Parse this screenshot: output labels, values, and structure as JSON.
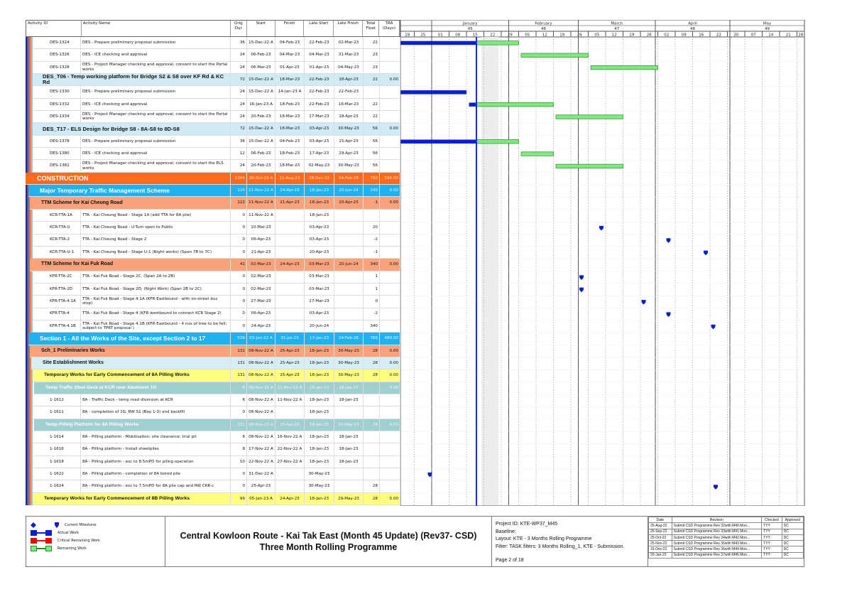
{
  "columns": {
    "id": "Activity ID",
    "name": "Activity Name",
    "dur": "Orig Dur",
    "start": "Start",
    "finish": "Finish",
    "ls": "Late Start",
    "lf": "Late Finish",
    "tf": "Total Float",
    "tra": "TRA (Days)"
  },
  "timescale": {
    "start": "2022-12-18",
    "end": "2023-05-31",
    "data_date": "2023-01-19",
    "shaded": [
      "2023-01-21",
      "2023-01-28"
    ],
    "months": [
      {
        "name": "January",
        "num": "45",
        "start": "2023-01-01"
      },
      {
        "name": "February",
        "num": "46",
        "start": "2023-02-01"
      },
      {
        "name": "March",
        "num": "47",
        "start": "2023-03-01"
      },
      {
        "name": "April",
        "num": "48",
        "start": "2023-04-01"
      },
      {
        "name": "May",
        "num": "49",
        "start": "2023-05-01"
      }
    ],
    "weeks": [
      "18",
      "25",
      "01",
      "08",
      "15",
      "22",
      "29",
      "05",
      "12",
      "19",
      "26",
      "05",
      "12",
      "19",
      "26",
      "02",
      "09",
      "16",
      "23",
      "30",
      "07",
      "14",
      "21",
      "28"
    ],
    "week_starts": [
      "2022-12-18",
      "2022-12-25",
      "2023-01-01",
      "2023-01-08",
      "2023-01-15",
      "2023-01-22",
      "2023-01-29",
      "2023-02-05",
      "2023-02-12",
      "2023-02-19",
      "2023-02-26",
      "2023-03-05",
      "2023-03-12",
      "2023-03-19",
      "2023-03-26",
      "2023-04-02",
      "2023-04-09",
      "2023-04-16",
      "2023-04-23",
      "2023-04-30",
      "2023-05-07",
      "2023-05-14",
      "2023-05-21",
      "2023-05-28"
    ]
  },
  "colors": {
    "actual": "#0a1fd0",
    "remaining": "#80e880",
    "milestone": "#1020c0",
    "critical": "#e01010",
    "data_date": "#1a2ee0"
  },
  "rows": [
    {
      "type": "act",
      "id": "DES-1324",
      "name": "DES  - Prepare preliminary proposal submission",
      "dur": "36",
      "start": "15-Dec-22 A",
      "finish": "04-Feb-23",
      "ls": "22-Feb-23",
      "lf": "02-Mar-23",
      "tf": "22",
      "tra": "",
      "actual": [
        "2022-12-15",
        "2023-01-19"
      ],
      "remaining": [
        "2023-01-19",
        "2023-02-05"
      ]
    },
    {
      "type": "act",
      "id": "DES-1326",
      "name": "DES - ICE checking and approval",
      "dur": "24",
      "start": "06-Feb-23",
      "finish": "04-Mar-23",
      "ls": "04-Mar-23",
      "lf": "31-Mar-23",
      "tf": "23",
      "tra": "",
      "remaining": [
        "2023-02-06",
        "2023-03-05"
      ]
    },
    {
      "type": "act",
      "id": "DES-1328",
      "name": "DES - Project Manager checking and approval; consent to start the Portal works",
      "dur": "24",
      "start": "06-Mar-23",
      "finish": "01-Apr-23",
      "ls": "01-Apr-23",
      "lf": "04-May-23",
      "tf": "23",
      "tra": "",
      "remaining": [
        "2023-03-06",
        "2023-04-02"
      ]
    },
    {
      "type": "t-wbs",
      "id": "",
      "name": "DES_T06 - Temp working platform for Bridge S2 & S8 over KF Rd & KC Rd",
      "dur": "72",
      "start": "15-Dec-22 A",
      "finish": "18-Mar-23",
      "ls": "22-Feb-23",
      "lf": "18-Apr-23",
      "tf": "22",
      "tra": "0.00"
    },
    {
      "type": "act",
      "id": "DES-1330",
      "name": "DES  - Prepare preliminary proposal submission",
      "dur": "24",
      "start": "15-Dec-22 A",
      "finish": "14-Jan-23 A",
      "ls": "22-Feb-23",
      "lf": "22-Feb-23",
      "tf": "",
      "tra": "",
      "actual": [
        "2022-12-15",
        "2023-01-15"
      ]
    },
    {
      "type": "act",
      "id": "DES-1332",
      "name": "DES - ICE checking and approval",
      "dur": "24",
      "start": "16-Jan-23 A",
      "finish": "18-Feb-23",
      "ls": "22-Feb-23",
      "lf": "16-Mar-23",
      "tf": "22",
      "tra": "",
      "actual": [
        "2023-01-16",
        "2023-01-19"
      ],
      "remaining": [
        "2023-01-19",
        "2023-02-19"
      ]
    },
    {
      "type": "act",
      "id": "DES-1334",
      "name": "DES - Project Manager checking and approval; consent to start the Portal works",
      "dur": "24",
      "start": "20-Feb-23",
      "finish": "18-Mar-23",
      "ls": "17-Mar-23",
      "lf": "18-Apr-23",
      "tf": "22",
      "tra": "",
      "remaining": [
        "2023-02-20",
        "2023-03-19"
      ]
    },
    {
      "type": "t-wbs",
      "id": "",
      "name": "DES_T17 - ELS Design for Bridge S8 - 8A-S8 to 8D-S8",
      "dur": "72",
      "start": "15-Dec-22 A",
      "finish": "18-Mar-23",
      "ls": "03-Apr-23",
      "lf": "30-May-23",
      "tf": "56",
      "tra": "0.00"
    },
    {
      "type": "act",
      "id": "DES-1378",
      "name": "DES - Prepare preliminary proposal submission",
      "dur": "36",
      "start": "15-Dec-22 A",
      "finish": "04-Feb-23",
      "ls": "03-Apr-23",
      "lf": "15-Apr-23",
      "tf": "56",
      "tra": "",
      "actual": [
        "2022-12-15",
        "2023-01-19"
      ],
      "remaining": [
        "2023-01-19",
        "2023-02-05"
      ]
    },
    {
      "type": "act",
      "id": "DES-1380",
      "name": "DES - ICE checking and approval",
      "dur": "12",
      "start": "06-Feb-23",
      "finish": "18-Feb-23",
      "ls": "17-Apr-23",
      "lf": "29-Apr-23",
      "tf": "56",
      "tra": "",
      "remaining": [
        "2023-02-06",
        "2023-02-19"
      ]
    },
    {
      "type": "act",
      "id": "DES-1382",
      "name": "DES - Project Manager checking and approval; consent to start the ELS works",
      "dur": "24",
      "start": "20-Feb-23",
      "finish": "18-Mar-23",
      "ls": "02-May-23",
      "lf": "30-May-23",
      "tf": "56",
      "tra": "",
      "remaining": [
        "2023-02-20",
        "2023-03-19"
      ]
    },
    {
      "type": "t-l1",
      "id": "",
      "name": "CONSTRUCTION",
      "dur": "1264",
      "start": "30-Oct-19 A",
      "finish": "11-Aug-23",
      "ls": "28-Dec-22",
      "lf": "24-Feb-26",
      "tf": "750",
      "tra": "596.00"
    },
    {
      "type": "t-l2",
      "id": "",
      "name": "Major Temporary Traffic Management Scheme",
      "dur": "124",
      "start": "11-Nov-22 A",
      "finish": "24-Apr-23",
      "ls": "18-Jan-23",
      "lf": "20-Jun-24",
      "tf": "340",
      "tra": "0.00"
    },
    {
      "type": "t-l3",
      "id": "",
      "name": "TTM Scheme for Kai Cheung Road",
      "dur": "122",
      "start": "11-Nov-22 A",
      "finish": "21-Apr-23",
      "ls": "18-Jan-23",
      "lf": "20-Apr-23",
      "tf": "-1",
      "tra": "0.00"
    },
    {
      "type": "act",
      "id": "KCR-TTA-1A",
      "name": "TTA - Kai Cheung Road - Stage 1A (add TTA for 8A pile)",
      "dur": "0",
      "start": "11-Nov-22 A",
      "finish": "",
      "ls": "18-Jan-23",
      "lf": "",
      "tf": "",
      "tra": ""
    },
    {
      "type": "act",
      "id": "KCR-TTA-U",
      "name": "TTA - Kai Cheung Road - U-Turn open to Public",
      "dur": "0",
      "start": "10-Mar-23",
      "finish": "",
      "ls": "03-Apr-23",
      "lf": "",
      "tf": "20",
      "tra": "",
      "milestone": "2023-03-10"
    },
    {
      "type": "act",
      "id": "KCR-TTA-2",
      "name": "TTA - Kai Cheung Road - Stage 2",
      "dur": "0",
      "start": "06-Apr-23",
      "finish": "",
      "ls": "03-Apr-23",
      "lf": "",
      "tf": "-2",
      "tra": "",
      "milestone": "2023-04-06"
    },
    {
      "type": "act",
      "id": "KCR-TTA-U-1",
      "name": "TTA - Kai Cheung Road - Stage U-1 (Night works) (Span 7B to 7C)",
      "dur": "0",
      "start": "21-Apr-23",
      "finish": "",
      "ls": "20-Apr-23",
      "lf": "",
      "tf": "-1",
      "tra": "",
      "milestone": "2023-04-21"
    },
    {
      "type": "t-l3",
      "id": "",
      "name": "TTM Scheme for Kai Fuk Road",
      "dur": "41",
      "start": "02-Mar-23",
      "finish": "24-Apr-23",
      "ls": "03-Mar-23",
      "lf": "20-Jun-24",
      "tf": "340",
      "tra": "0.00"
    },
    {
      "type": "act",
      "id": "KFR-TTA-2C",
      "name": "TTA - Kai Fuk Road - Stage 2C,  (Span 2A to 2B)",
      "dur": "0",
      "start": "02-Mar-23",
      "finish": "",
      "ls": "03-Mar-23",
      "lf": "",
      "tf": "1",
      "tra": "",
      "milestone": "2023-03-02"
    },
    {
      "type": "act",
      "id": "KFR-TTA-2D",
      "name": "TTA - Kai Fuk Road - Stage 2D, (Night Work) (Span 2B to 2C)",
      "dur": "0",
      "start": "02-Mar-23",
      "finish": "",
      "ls": "03-Mar-23",
      "lf": "",
      "tf": "1",
      "tra": "",
      "milestone": "2023-03-02"
    },
    {
      "type": "act",
      "id": "KFR-TTA-4.1A",
      "name": "TTA - Kai Fuk Road - Stage 4.1A (KFR Eastbound - with on-street bus stop)",
      "dur": "0",
      "start": "27-Mar-23",
      "finish": "",
      "ls": "27-Mar-23",
      "lf": "",
      "tf": "0",
      "tra": "",
      "milestone": "2023-03-27"
    },
    {
      "type": "act",
      "id": "KFR-TTA-4",
      "name": "TTA - Kai Fuk Road - Stage 4 (KFR westbound to connect KCR Stage 2)",
      "dur": "0",
      "start": "06-Apr-23",
      "finish": "",
      "ls": "03-Apr-23",
      "lf": "",
      "tf": "-2",
      "tra": "",
      "milestone": "2023-04-06"
    },
    {
      "type": "act",
      "id": "KFR-TTA-4.1B",
      "name": "TTA - Kai Fuk Road - Stage 4.1B (KFR Eastbound - 4 nos of tree to be fell; subject to TPRT proposal )",
      "dur": "0",
      "start": "24-Apr-23",
      "finish": "",
      "ls": "20-Jun-24",
      "lf": "",
      "tf": "340",
      "tra": "",
      "milestone": "2023-04-24"
    },
    {
      "type": "t-l2",
      "id": "",
      "name": "Section 1 - All the Works of the Site, except Section 2 to 17",
      "dur": "539",
      "start": "03-Jan-22 A",
      "finish": "31-Jul-23",
      "ls": "13-Jan-23",
      "lf": "24-Feb-26",
      "tf": "760",
      "tra": "489.00"
    },
    {
      "type": "t-l3",
      "id": "",
      "name": "Sch_1 Preliminaries Works",
      "dur": "131",
      "start": "08-Nov-22 A",
      "finish": "25-Apr-23",
      "ls": "18-Jan-23",
      "lf": "30-May-23",
      "tf": "28",
      "tra": "0.00"
    },
    {
      "type": "t-site",
      "id": "",
      "name": "Site Establishment Works",
      "dur": "131",
      "start": "08-Nov-22 A",
      "finish": "25-Apr-23",
      "ls": "18-Jan-23",
      "lf": "30-May-23",
      "tf": "28",
      "tra": "0.00"
    },
    {
      "type": "t-yel",
      "id": "",
      "name": "Temporary Works for Early Commencement of 8A Pilling Works",
      "dur": "131",
      "start": "08-Nov-22 A",
      "finish": "25-Apr-23",
      "ls": "18-Jan-23",
      "lf": "30-May-23",
      "tf": "28",
      "tra": "0.00"
    },
    {
      "type": "t-teal",
      "id": "",
      "name": "Temp Traffic Steel Deck at KCR near Abutment 1G",
      "dur": "6",
      "start": "08-Nov-22 A",
      "finish": "11-Nov-22 A",
      "ls": "18-Jan-23",
      "lf": "18-Jan-23",
      "tf": "",
      "tra": "0.00"
    },
    {
      "type": "act",
      "id": "1-1612",
      "name": "8A - Traffic Deck - temp road diversion at KCR",
      "dur": "6",
      "start": "08-Nov-22 A",
      "finish": "11-Nov-22 A",
      "ls": "18-Jan-23",
      "lf": "18-Jan-23",
      "tf": "",
      "tra": ""
    },
    {
      "type": "act",
      "id": "1-1611",
      "name": "8A - completion of 1G,  RW S1 (Bay 1-3) and backfill",
      "dur": "0",
      "start": "08-Nov-22 A",
      "finish": "",
      "ls": "18-Jan-23",
      "lf": "",
      "tf": "",
      "tra": ""
    },
    {
      "type": "t-teal",
      "id": "",
      "name": "Temp Pilling Platform for 8A Pilling Works",
      "dur": "131",
      "start": "08-Nov-22 A",
      "finish": "25-Apr-23",
      "ls": "18-Jan-23",
      "lf": "30-May-23",
      "tf": "28",
      "tra": "0.00"
    },
    {
      "type": "act",
      "id": "1-1614",
      "name": "8A - Pilling platform -  Mobilisation; site clearance; trial pit",
      "dur": "6",
      "start": "08-Nov-22 A",
      "finish": "16-Nov-22 A",
      "ls": "18-Jan-23",
      "lf": "18-Jan-23",
      "tf": "",
      "tra": ""
    },
    {
      "type": "act",
      "id": "1-1616",
      "name": "8A - Pilling platform -  Install sheetpiles",
      "dur": "8",
      "start": "17-Nov-22 A",
      "finish": "22-Nov-22 A",
      "ls": "18-Jan-23",
      "lf": "18-Jan-23",
      "tf": "",
      "tra": ""
    },
    {
      "type": "act",
      "id": "1-1618",
      "name": "8A - Pilling platform - exc to 8.5mPD for piling operation",
      "dur": "10",
      "start": "22-Nov-22 A",
      "finish": "27-Nov-22 A",
      "ls": "18-Jan-23",
      "lf": "18-Jan-23",
      "tf": "",
      "tra": ""
    },
    {
      "type": "act",
      "id": "1-1622",
      "name": "8A - Pilling platform - completion of 8A bored pile",
      "dur": "0",
      "start": "31-Dec-22 A",
      "finish": "",
      "ls": "30-May-23",
      "lf": "",
      "tf": "",
      "tra": "",
      "milestone": "2022-12-31"
    },
    {
      "type": "act",
      "id": "1-1624",
      "name": "8A - Pilling platform - exc to 7.5mPD for 8A pile cap and RW CKR-c",
      "dur": "0",
      "start": "25-Apr-23",
      "finish": "",
      "ls": "30-May-23",
      "lf": "",
      "tf": "28",
      "tra": "",
      "milestone": "2023-04-25"
    },
    {
      "type": "t-yel",
      "id": "",
      "name": "Temporary Works for Early Commencement of 8B Pilling Works",
      "dur": "99",
      "start": "05-Jan-23 A",
      "finish": "24-Apr-23",
      "ls": "18-Jan-23",
      "lf": "29-May-23",
      "tf": "28",
      "tra": "0.00"
    }
  ],
  "footer": {
    "legend": [
      "Current Milestone",
      "Actual Work",
      "Critical Remaining Work",
      "Remaining Work"
    ],
    "title1": "Central Kowloon Route - Kai Tak East (Month 45 Update) (Rev37- CSD)",
    "title2": "Three Month Rolling Programme",
    "project_id": "Project ID: KTE-WP37_M45",
    "baseline": "Baseline:",
    "layout": "Layout: KTE - 3 Months Rolling Programme",
    "filter": "Filter: TASK filters: 3 Months Rolling_1, KTE - Submission.",
    "page": "Page 2 of 18",
    "rev_headers": [
      "Date",
      "Revision",
      "Checked",
      "Approved"
    ],
    "revisions": [
      [
        "25-Aug-22",
        "Submit CSD Programme Rev 32with M40 Mon...",
        "TYY",
        "DC"
      ],
      [
        "25-Sep-22",
        "Submit CSD Programme Rev 33with M41 Mon...",
        "TYY",
        "DC"
      ],
      [
        "25-Oct-22",
        "Submit CSD Programme Rev 34with M42 Mon...",
        "TYY",
        "DC"
      ],
      [
        "25-Nov-22",
        "Submit CSD Programme Rev 35with M43 Mon...",
        "TYY",
        "DC"
      ],
      [
        "15-Dec-22",
        "Submit CSD Programme Rev 36with M44 Mon...",
        "TYY",
        "DC"
      ],
      [
        "20-Jan-23",
        "Submit CSD Programme Rev 37with M45 Mon...",
        "TYY",
        "DC"
      ]
    ]
  }
}
